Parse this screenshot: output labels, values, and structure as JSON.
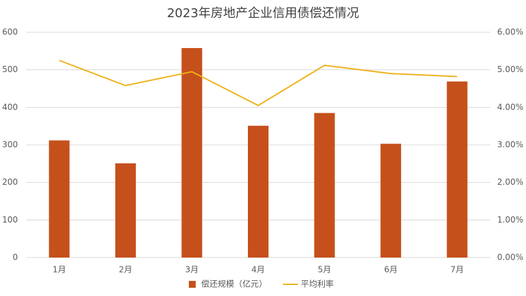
{
  "chart_data": {
    "type": "bar",
    "title": "2023年房地产企业信用债偿还情况",
    "categories": [
      "1月",
      "2月",
      "3月",
      "4月",
      "5月",
      "6月",
      "7月"
    ],
    "series": [
      {
        "name": "偿还规模（亿元）",
        "type": "bar",
        "color": "#c5501b",
        "values": [
          312,
          251,
          558,
          351,
          385,
          303,
          469
        ]
      },
      {
        "name": "平均利率",
        "type": "line",
        "axis": "y2",
        "color": "#eeb21c",
        "values": [
          5.25,
          4.58,
          4.95,
          4.05,
          5.12,
          4.9,
          4.82
        ]
      }
    ],
    "ylim": [
      0,
      600
    ],
    "yticks": [
      0,
      100,
      200,
      300,
      400,
      500,
      600
    ],
    "y2lim": [
      0,
      6
    ],
    "y2ticks": [
      {
        "value": 0,
        "label": "0.00%"
      },
      {
        "value": 1,
        "label": "1.00%"
      },
      {
        "value": 2,
        "label": "2.00%"
      },
      {
        "value": 3,
        "label": "3.00%"
      },
      {
        "value": 4,
        "label": "4.00%"
      },
      {
        "value": 5,
        "label": "5.00%"
      },
      {
        "value": 6,
        "label": "6.00%"
      }
    ],
    "grid": true,
    "legend": "bottom"
  }
}
